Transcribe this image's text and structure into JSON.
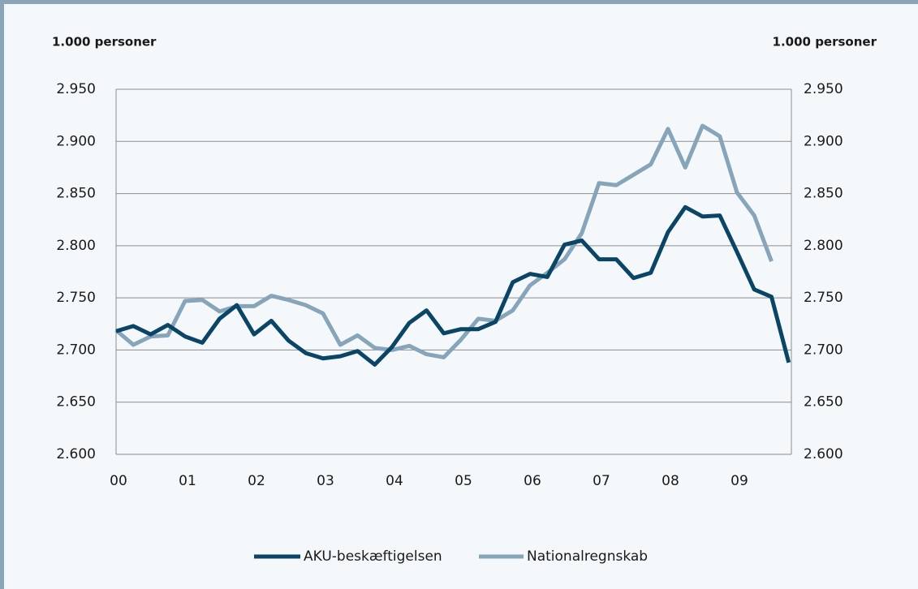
{
  "chart_data": {
    "type": "line",
    "y_label": "1.000 personer",
    "y2_label": "1.000 personer",
    "categories": [
      "00",
      null,
      null,
      null,
      "01",
      null,
      null,
      null,
      "02",
      null,
      null,
      null,
      "03",
      null,
      null,
      null,
      "04",
      null,
      null,
      null,
      "05",
      null,
      null,
      null,
      "06",
      null,
      null,
      null,
      "07",
      null,
      null,
      null,
      "08",
      null,
      null,
      null,
      "09",
      null,
      null,
      null
    ],
    "series": [
      {
        "name": "AKU-beskæftigelsen",
        "color": "#0b4566",
        "values": [
          2718,
          2723,
          2715,
          2724,
          2713,
          2707,
          2730,
          2743,
          2715,
          2728,
          2709,
          2697,
          2692,
          2694,
          2699,
          2686,
          2703,
          2726,
          2738,
          2716,
          2720,
          2720,
          2727,
          2765,
          2773,
          2770,
          2801,
          2805,
          2787,
          2787,
          2769,
          2774,
          2813,
          2837,
          2828,
          2829,
          2794,
          2758,
          2751,
          2688
        ]
      },
      {
        "name": "Nationalregnskab",
        "color": "#87a5b9",
        "values": [
          2719,
          2705,
          2713,
          2714,
          2747,
          2748,
          2737,
          2742,
          2742,
          2752,
          2748,
          2743,
          2735,
          2705,
          2714,
          2702,
          2700,
          2704,
          2696,
          2693,
          2710,
          2730,
          2728,
          2738,
          2762,
          2774,
          2787,
          2812,
          2860,
          2858,
          2868,
          2878,
          2912,
          2875,
          2915,
          2905,
          2851,
          2829,
          2785,
          null
        ]
      }
    ],
    "ylim": [
      2600,
      2950
    ],
    "yticks": [
      {
        "value": 2600,
        "label": "2.600"
      },
      {
        "value": 2650,
        "label": "2.650"
      },
      {
        "value": 2700,
        "label": "2.700"
      },
      {
        "value": 2750,
        "label": "2.750"
      },
      {
        "value": 2800,
        "label": "2.800"
      },
      {
        "value": 2850,
        "label": "2.850"
      },
      {
        "value": 2900,
        "label": "2.900"
      },
      {
        "value": 2950,
        "label": "2.950"
      }
    ],
    "y2lim": [
      2600,
      2950
    ],
    "y2ticks": [
      {
        "value": 2600,
        "label": "2.600"
      },
      {
        "value": 2650,
        "label": "2.650"
      },
      {
        "value": 2700,
        "label": "2.700"
      },
      {
        "value": 2750,
        "label": "2.750"
      },
      {
        "value": 2800,
        "label": "2.800"
      },
      {
        "value": 2850,
        "label": "2.850"
      },
      {
        "value": 2900,
        "label": "2.900"
      },
      {
        "value": 2950,
        "label": "2.950"
      }
    ],
    "grid": true,
    "legend": "bottom"
  }
}
